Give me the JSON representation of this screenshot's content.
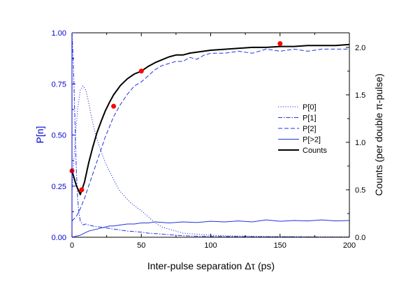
{
  "chart_data": {
    "type": "line",
    "xlabel": "Inter-pulse separation Δτ (ps)",
    "ylabel_left": "P[n]",
    "ylabel_right": "Counts (per double π-pulse)",
    "xlim": [
      0,
      200
    ],
    "ylim_left": [
      0,
      1.0
    ],
    "ylim_right": [
      0,
      2.1538
    ],
    "x_ticks": [
      0,
      50,
      100,
      150,
      200
    ],
    "y_ticks_left": [
      "0.00",
      "0.25",
      "0.50",
      "0.75",
      "1.00"
    ],
    "y_ticks_right": [
      "0.0",
      "0.5",
      "1.0",
      "1.5",
      "2.0"
    ],
    "legend_position": "center-right",
    "grid": false,
    "colors": {
      "left_axis": "#0000d0",
      "series": "#2233dd",
      "counts": "#000000",
      "markers": "#ff0000"
    },
    "series": [
      {
        "name": "P[0]",
        "axis": "left",
        "style": "dotted",
        "x": [
          0,
          2,
          4,
          6,
          8,
          10,
          12,
          14,
          16,
          18,
          20,
          22,
          25,
          28,
          31,
          34,
          38,
          42,
          46,
          50,
          55,
          60,
          65,
          70,
          75,
          80,
          90,
          100,
          110,
          120,
          140,
          160,
          180,
          200
        ],
        "y": [
          0.22,
          0.45,
          0.62,
          0.72,
          0.74,
          0.72,
          0.66,
          0.59,
          0.53,
          0.48,
          0.44,
          0.4,
          0.35,
          0.31,
          0.27,
          0.23,
          0.2,
          0.17,
          0.15,
          0.13,
          0.1,
          0.07,
          0.05,
          0.04,
          0.03,
          0.02,
          0.015,
          0.01,
          0.008,
          0.006,
          0.004,
          0.003,
          0.002,
          0.002
        ]
      },
      {
        "name": "P[1]",
        "axis": "left",
        "style": "dashdot",
        "x": [
          0,
          1,
          2,
          3,
          4,
          5,
          6,
          8,
          10,
          12,
          15,
          20,
          25,
          30,
          35,
          40,
          45,
          50,
          55,
          60,
          70,
          80,
          90,
          100,
          120,
          140,
          160,
          180,
          200
        ],
        "y": [
          1.0,
          0.85,
          0.6,
          0.35,
          0.2,
          0.12,
          0.08,
          0.06,
          0.065,
          0.06,
          0.055,
          0.05,
          0.045,
          0.04,
          0.035,
          0.03,
          0.028,
          0.025,
          0.02,
          0.018,
          0.012,
          0.008,
          0.005,
          0.004,
          0.003,
          0.002,
          0.002,
          0.001,
          0.001
        ]
      },
      {
        "name": "P[2]",
        "axis": "left",
        "style": "dashed",
        "x": [
          0,
          3,
          6,
          9,
          12,
          15,
          18,
          21,
          24,
          27,
          30,
          35,
          40,
          45,
          50,
          55,
          60,
          65,
          70,
          75,
          80,
          85,
          90,
          95,
          100,
          110,
          120,
          130,
          140,
          150,
          160,
          170,
          180,
          190,
          200
        ],
        "y": [
          0.08,
          0.1,
          0.14,
          0.19,
          0.25,
          0.31,
          0.37,
          0.43,
          0.49,
          0.54,
          0.59,
          0.65,
          0.7,
          0.74,
          0.76,
          0.79,
          0.82,
          0.84,
          0.85,
          0.86,
          0.86,
          0.88,
          0.87,
          0.89,
          0.9,
          0.9,
          0.91,
          0.9,
          0.92,
          0.91,
          0.92,
          0.91,
          0.92,
          0.92,
          0.92
        ]
      },
      {
        "name": "P[>2]",
        "axis": "left",
        "style": "solid-thin",
        "x": [
          0,
          3,
          6,
          9,
          12,
          15,
          18,
          21,
          24,
          27,
          30,
          35,
          40,
          45,
          50,
          55,
          60,
          70,
          80,
          90,
          100,
          110,
          120,
          130,
          140,
          150,
          160,
          170,
          180,
          190,
          200
        ],
        "y": [
          0.0,
          0.005,
          0.01,
          0.02,
          0.03,
          0.035,
          0.04,
          0.045,
          0.05,
          0.055,
          0.055,
          0.06,
          0.065,
          0.065,
          0.07,
          0.07,
          0.075,
          0.07,
          0.075,
          0.072,
          0.078,
          0.075,
          0.08,
          0.075,
          0.085,
          0.078,
          0.082,
          0.08,
          0.085,
          0.08,
          0.082
        ]
      },
      {
        "name": "Counts",
        "axis": "right",
        "style": "solid-thick",
        "x": [
          0,
          3,
          6,
          9,
          12,
          15,
          18,
          21,
          24,
          27,
          30,
          35,
          40,
          45,
          50,
          55,
          60,
          65,
          70,
          75,
          80,
          85,
          90,
          95,
          100,
          110,
          120,
          130,
          140,
          150,
          160,
          170,
          180,
          190,
          200
        ],
        "y": [
          0.7,
          0.55,
          0.45,
          0.58,
          0.78,
          0.95,
          1.1,
          1.22,
          1.33,
          1.42,
          1.5,
          1.6,
          1.67,
          1.72,
          1.75,
          1.8,
          1.84,
          1.87,
          1.9,
          1.92,
          1.92,
          1.94,
          1.95,
          1.96,
          1.97,
          1.98,
          1.99,
          2.0,
          2.0,
          2.01,
          2.01,
          2.02,
          2.02,
          2.02,
          2.03
        ]
      }
    ],
    "markers": {
      "axis": "right",
      "x": [
        0,
        7,
        30,
        50,
        150
      ],
      "y": [
        0.7,
        0.5,
        1.38,
        1.75,
        2.04
      ]
    }
  }
}
